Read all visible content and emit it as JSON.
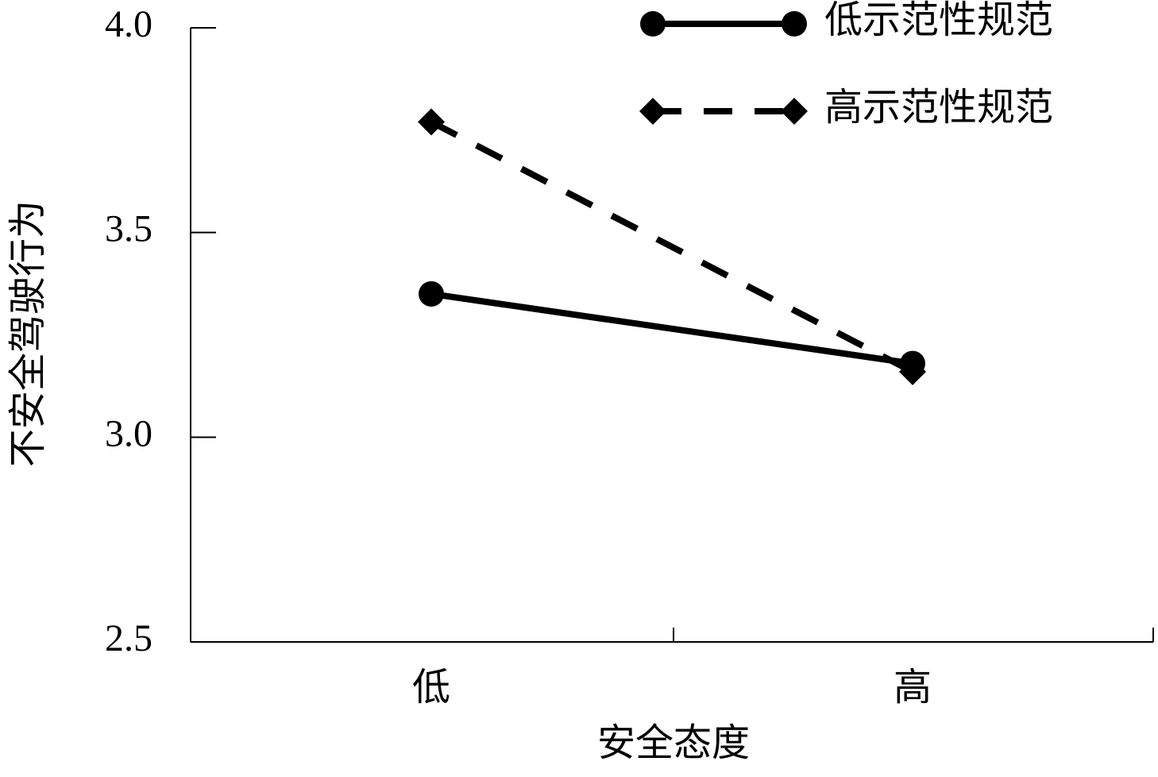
{
  "chart_data": {
    "type": "line",
    "x_label": "安全态度",
    "y_label": "不安全驾驶行为",
    "categories": [
      "低",
      "高"
    ],
    "series": [
      {
        "name": "低示范性规范",
        "color": "#000000",
        "marker": "circle",
        "dashed": false,
        "values": [
          3.35,
          3.18
        ]
      },
      {
        "name": "高示范性规范",
        "color": "#000000",
        "marker": "diamond",
        "dashed": true,
        "values": [
          3.77,
          3.16
        ]
      }
    ],
    "ylim": [
      2.5,
      4.0
    ],
    "yticks": [
      {
        "value": 2.5,
        "label": "2.5"
      },
      {
        "value": 3.0,
        "label": "3.0"
      },
      {
        "value": 3.5,
        "label": "3.5"
      },
      {
        "value": 4.0,
        "label": "4.0"
      }
    ],
    "grid": false
  }
}
